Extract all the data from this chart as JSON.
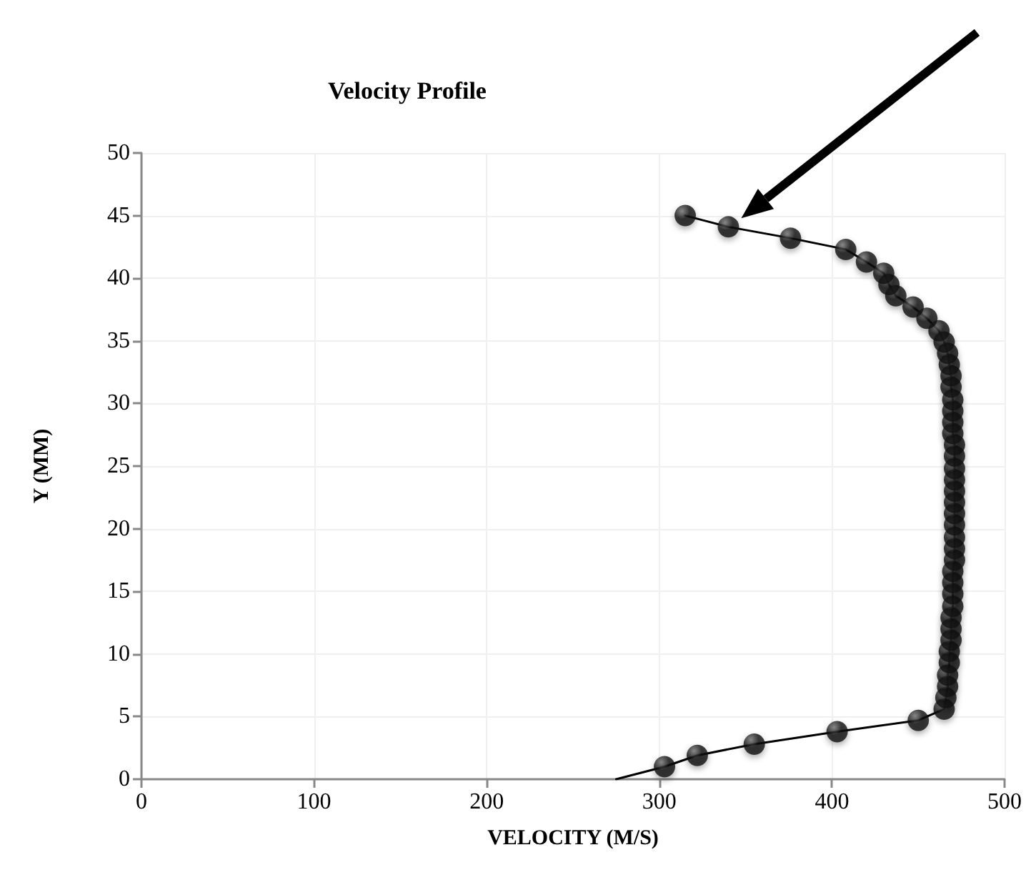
{
  "chart_data": {
    "type": "scatter",
    "title": "Velocity Profile",
    "xlabel": "VELOCITY (M/S)",
    "ylabel": "Y (MM)",
    "xlim": [
      0,
      500
    ],
    "xticks": [
      0,
      100,
      200,
      300,
      400,
      500
    ],
    "ylim": [
      0,
      50
    ],
    "yticks": [
      0,
      5,
      10,
      15,
      20,
      25,
      30,
      35,
      40,
      45,
      50
    ],
    "grid": true,
    "series": [
      {
        "type": "line",
        "color": "#000000",
        "marker": "none",
        "line_style": "solid",
        "x": [
          275,
          303,
          322,
          355,
          403,
          450,
          465,
          466,
          467,
          467,
          468,
          468,
          469,
          469,
          469,
          470,
          470,
          470,
          470,
          471,
          471,
          471,
          471,
          471,
          471,
          471,
          471,
          471,
          471,
          471,
          470,
          470,
          470,
          470,
          469,
          469,
          468,
          467,
          465,
          462,
          455,
          447,
          437,
          433,
          430,
          420,
          408,
          376,
          340,
          315
        ],
        "values": [
          0,
          1.0,
          1.9,
          2.8,
          3.8,
          4.7,
          5.6,
          6.5,
          7.4,
          8.3,
          9.3,
          10.2,
          11.1,
          12.0,
          12.9,
          13.8,
          14.8,
          15.7,
          16.6,
          17.5,
          18.4,
          19.3,
          20.3,
          21.2,
          22.1,
          23.0,
          23.9,
          24.8,
          25.8,
          26.7,
          27.6,
          28.5,
          29.4,
          30.3,
          31.3,
          32.2,
          33.1,
          34.0,
          34.9,
          35.8,
          36.8,
          37.7,
          38.6,
          39.5,
          40.4,
          41.3,
          42.3,
          43.2,
          44.1,
          45.0
        ]
      },
      {
        "color": "#111111",
        "marker": "circle",
        "x": [
          303,
          322,
          355,
          403,
          450,
          465,
          466,
          467,
          467,
          468,
          468,
          469,
          469,
          469,
          470,
          470,
          470,
          470,
          471,
          471,
          471,
          471,
          471,
          471,
          471,
          471,
          471,
          471,
          471,
          470,
          470,
          470,
          470,
          469,
          469,
          468,
          467,
          465,
          462,
          455,
          447,
          437,
          433,
          430,
          420,
          408,
          376,
          340,
          315
        ],
        "values": [
          1.0,
          1.9,
          2.8,
          3.8,
          4.7,
          5.6,
          6.5,
          7.4,
          8.3,
          9.3,
          10.2,
          11.1,
          12.0,
          12.9,
          13.8,
          14.8,
          15.7,
          16.6,
          17.5,
          18.4,
          19.3,
          20.3,
          21.2,
          22.1,
          23.0,
          23.9,
          24.8,
          25.8,
          26.7,
          27.6,
          28.5,
          29.4,
          30.3,
          31.3,
          32.2,
          33.1,
          34.0,
          34.9,
          35.8,
          36.8,
          37.7,
          38.6,
          39.5,
          40.4,
          41.3,
          42.3,
          43.2,
          44.1,
          45.0
        ]
      }
    ]
  }
}
